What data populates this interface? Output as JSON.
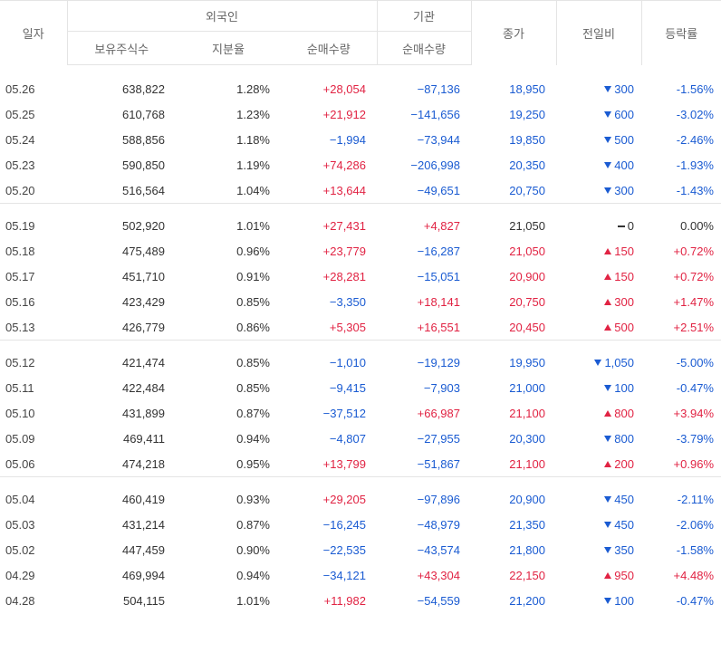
{
  "header": {
    "date": "일자",
    "foreign_group": "외국인",
    "inst_group": "기관",
    "close": "종가",
    "diff": "전일비",
    "rate": "등락률",
    "holdings": "보유주식수",
    "share_ratio": "지분율",
    "foreign_net": "순매수량",
    "inst_net": "순매수량"
  },
  "colors": {
    "up": "#e12343",
    "down": "#1a5bd2",
    "line": "#e4e4e4"
  },
  "groups": [
    {
      "rows": [
        {
          "date": "05.26",
          "holdings": "638,822",
          "ratio": "1.28%",
          "foreign": "+28,054",
          "inst": "−87,136",
          "close": "18,950",
          "dir": "down",
          "diff": "300",
          "rate": "-1.56%"
        },
        {
          "date": "05.25",
          "holdings": "610,768",
          "ratio": "1.23%",
          "foreign": "+21,912",
          "inst": "−141,656",
          "close": "19,250",
          "dir": "down",
          "diff": "600",
          "rate": "-3.02%"
        },
        {
          "date": "05.24",
          "holdings": "588,856",
          "ratio": "1.18%",
          "foreign": "−1,994",
          "inst": "−73,944",
          "close": "19,850",
          "dir": "down",
          "diff": "500",
          "rate": "-2.46%"
        },
        {
          "date": "05.23",
          "holdings": "590,850",
          "ratio": "1.19%",
          "foreign": "+74,286",
          "inst": "−206,998",
          "close": "20,350",
          "dir": "down",
          "diff": "400",
          "rate": "-1.93%"
        },
        {
          "date": "05.20",
          "holdings": "516,564",
          "ratio": "1.04%",
          "foreign": "+13,644",
          "inst": "−49,651",
          "close": "20,750",
          "dir": "down",
          "diff": "300",
          "rate": "-1.43%"
        }
      ]
    },
    {
      "rows": [
        {
          "date": "05.19",
          "holdings": "502,920",
          "ratio": "1.01%",
          "foreign": "+27,431",
          "inst": "+4,827",
          "close": "21,050",
          "dir": "flat",
          "diff": "0",
          "rate": "0.00%"
        },
        {
          "date": "05.18",
          "holdings": "475,489",
          "ratio": "0.96%",
          "foreign": "+23,779",
          "inst": "−16,287",
          "close": "21,050",
          "dir": "up",
          "diff": "150",
          "rate": "+0.72%"
        },
        {
          "date": "05.17",
          "holdings": "451,710",
          "ratio": "0.91%",
          "foreign": "+28,281",
          "inst": "−15,051",
          "close": "20,900",
          "dir": "up",
          "diff": "150",
          "rate": "+0.72%"
        },
        {
          "date": "05.16",
          "holdings": "423,429",
          "ratio": "0.85%",
          "foreign": "−3,350",
          "inst": "+18,141",
          "close": "20,750",
          "dir": "up",
          "diff": "300",
          "rate": "+1.47%"
        },
        {
          "date": "05.13",
          "holdings": "426,779",
          "ratio": "0.86%",
          "foreign": "+5,305",
          "inst": "+16,551",
          "close": "20,450",
          "dir": "up",
          "diff": "500",
          "rate": "+2.51%"
        }
      ]
    },
    {
      "rows": [
        {
          "date": "05.12",
          "holdings": "421,474",
          "ratio": "0.85%",
          "foreign": "−1,010",
          "inst": "−19,129",
          "close": "19,950",
          "dir": "down",
          "diff": "1,050",
          "rate": "-5.00%"
        },
        {
          "date": "05.11",
          "holdings": "422,484",
          "ratio": "0.85%",
          "foreign": "−9,415",
          "inst": "−7,903",
          "close": "21,000",
          "dir": "down",
          "diff": "100",
          "rate": "-0.47%"
        },
        {
          "date": "05.10",
          "holdings": "431,899",
          "ratio": "0.87%",
          "foreign": "−37,512",
          "inst": "+66,987",
          "close": "21,100",
          "dir": "up",
          "diff": "800",
          "rate": "+3.94%"
        },
        {
          "date": "05.09",
          "holdings": "469,411",
          "ratio": "0.94%",
          "foreign": "−4,807",
          "inst": "−27,955",
          "close": "20,300",
          "dir": "down",
          "diff": "800",
          "rate": "-3.79%"
        },
        {
          "date": "05.06",
          "holdings": "474,218",
          "ratio": "0.95%",
          "foreign": "+13,799",
          "inst": "−51,867",
          "close": "21,100",
          "dir": "up",
          "diff": "200",
          "rate": "+0.96%"
        }
      ]
    },
    {
      "rows": [
        {
          "date": "05.04",
          "holdings": "460,419",
          "ratio": "0.93%",
          "foreign": "+29,205",
          "inst": "−97,896",
          "close": "20,900",
          "dir": "down",
          "diff": "450",
          "rate": "-2.11%"
        },
        {
          "date": "05.03",
          "holdings": "431,214",
          "ratio": "0.87%",
          "foreign": "−16,245",
          "inst": "−48,979",
          "close": "21,350",
          "dir": "down",
          "diff": "450",
          "rate": "-2.06%"
        },
        {
          "date": "05.02",
          "holdings": "447,459",
          "ratio": "0.90%",
          "foreign": "−22,535",
          "inst": "−43,574",
          "close": "21,800",
          "dir": "down",
          "diff": "350",
          "rate": "-1.58%"
        },
        {
          "date": "04.29",
          "holdings": "469,994",
          "ratio": "0.94%",
          "foreign": "−34,121",
          "inst": "+43,304",
          "close": "22,150",
          "dir": "up",
          "diff": "950",
          "rate": "+4.48%"
        },
        {
          "date": "04.28",
          "holdings": "504,115",
          "ratio": "1.01%",
          "foreign": "+11,982",
          "inst": "−54,559",
          "close": "21,200",
          "dir": "down",
          "diff": "100",
          "rate": "-0.47%"
        }
      ]
    }
  ]
}
